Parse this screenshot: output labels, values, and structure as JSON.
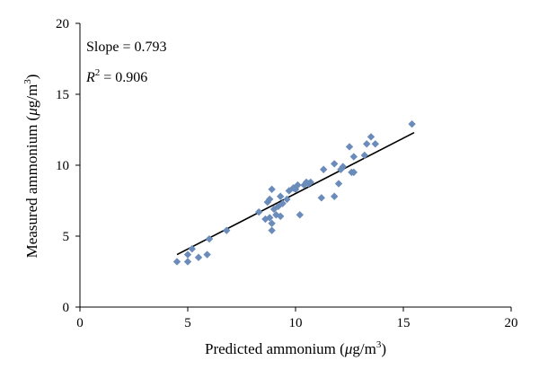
{
  "chart_data": {
    "type": "scatter",
    "title": "",
    "xlabel_parts": {
      "pre": "Predicted ammonium (",
      "mu": "μ",
      "unit": "g/m",
      "sup": "3",
      "post": ")"
    },
    "ylabel_parts": {
      "pre": "Measured ammonium (",
      "mu": "μ",
      "unit": "g/m",
      "sup": "3",
      "post": ")"
    },
    "xlim": [
      0,
      20
    ],
    "ylim": [
      0,
      20
    ],
    "xticks": [
      "0",
      "5",
      "10",
      "15",
      "20"
    ],
    "yticks": [
      "0",
      "5",
      "10",
      "15",
      "20"
    ],
    "grid": false,
    "marker_color": "#6b8cba",
    "line_color": "#000000",
    "annotations": {
      "slope": "Slope = 0.793",
      "r2_symbol": "R",
      "r2_sup": "2",
      "r2_value": " = 0.906"
    },
    "fit_line": {
      "x": [
        4.5,
        15.5
      ],
      "y": [
        3.7,
        12.3
      ]
    },
    "points": [
      {
        "x": 4.5,
        "y": 3.2
      },
      {
        "x": 5.0,
        "y": 3.2
      },
      {
        "x": 5.0,
        "y": 3.7
      },
      {
        "x": 5.2,
        "y": 4.1
      },
      {
        "x": 5.5,
        "y": 3.5
      },
      {
        "x": 5.9,
        "y": 3.7
      },
      {
        "x": 6.0,
        "y": 4.8
      },
      {
        "x": 6.8,
        "y": 5.4
      },
      {
        "x": 8.3,
        "y": 6.7
      },
      {
        "x": 8.6,
        "y": 6.2
      },
      {
        "x": 8.7,
        "y": 7.4
      },
      {
        "x": 8.8,
        "y": 7.6
      },
      {
        "x": 8.9,
        "y": 8.3
      },
      {
        "x": 8.8,
        "y": 6.3
      },
      {
        "x": 8.9,
        "y": 5.9
      },
      {
        "x": 8.9,
        "y": 5.4
      },
      {
        "x": 9.0,
        "y": 6.9
      },
      {
        "x": 9.1,
        "y": 6.5
      },
      {
        "x": 9.2,
        "y": 7.1
      },
      {
        "x": 9.3,
        "y": 7.8
      },
      {
        "x": 9.3,
        "y": 6.4
      },
      {
        "x": 9.4,
        "y": 7.3
      },
      {
        "x": 9.6,
        "y": 7.6
      },
      {
        "x": 9.7,
        "y": 8.2
      },
      {
        "x": 9.9,
        "y": 8.4
      },
      {
        "x": 10.0,
        "y": 8.3
      },
      {
        "x": 10.1,
        "y": 8.6
      },
      {
        "x": 10.2,
        "y": 6.5
      },
      {
        "x": 10.4,
        "y": 8.6
      },
      {
        "x": 10.5,
        "y": 8.8
      },
      {
        "x": 10.6,
        "y": 8.7
      },
      {
        "x": 10.7,
        "y": 8.8
      },
      {
        "x": 11.2,
        "y": 7.7
      },
      {
        "x": 11.3,
        "y": 9.7
      },
      {
        "x": 11.8,
        "y": 10.1
      },
      {
        "x": 11.8,
        "y": 7.8
      },
      {
        "x": 12.0,
        "y": 8.7
      },
      {
        "x": 12.1,
        "y": 9.7
      },
      {
        "x": 12.2,
        "y": 9.9
      },
      {
        "x": 12.5,
        "y": 11.3
      },
      {
        "x": 12.6,
        "y": 9.5
      },
      {
        "x": 12.7,
        "y": 10.6
      },
      {
        "x": 12.7,
        "y": 9.5
      },
      {
        "x": 13.2,
        "y": 10.7
      },
      {
        "x": 13.3,
        "y": 11.5
      },
      {
        "x": 13.5,
        "y": 12.0
      },
      {
        "x": 13.7,
        "y": 11.5
      },
      {
        "x": 15.4,
        "y": 12.9
      }
    ]
  }
}
